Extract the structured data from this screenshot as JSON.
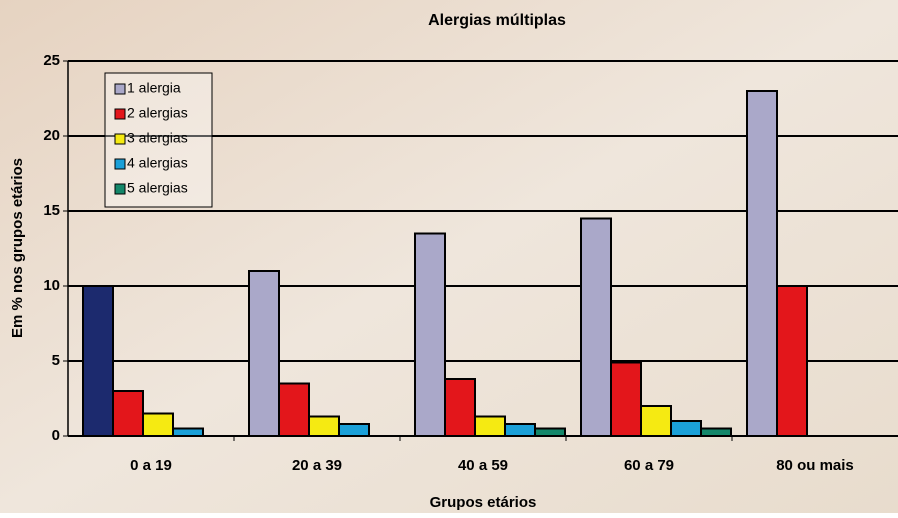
{
  "chart_data": {
    "type": "bar",
    "title": "Alergias múltiplas",
    "x_label": "Grupos etários",
    "y_label": "Em % nos grupos etários",
    "categories": [
      "0 a 19",
      "20 a 39",
      "40 a 59",
      "60 a 79",
      "80 ou mais"
    ],
    "series": [
      {
        "name": "1 alergia",
        "color": "#aaa8c9",
        "colors": [
          "#1c2a6e",
          "#aaa8c9",
          "#aaa8c9",
          "#aaa8c9",
          "#aaa8c9"
        ],
        "values": [
          10,
          11,
          13.5,
          14.5,
          23
        ]
      },
      {
        "name": "2 alergias",
        "color": "#e3161b",
        "values": [
          3,
          3.5,
          3.8,
          4.9,
          10
        ]
      },
      {
        "name": "3 alergias",
        "color": "#f5ea12",
        "values": [
          1.5,
          1.3,
          1.3,
          2,
          null
        ]
      },
      {
        "name": "4 alergias",
        "color": "#1ba0d8",
        "values": [
          0.5,
          0.8,
          0.8,
          1,
          null
        ]
      },
      {
        "name": "5 alergias",
        "color": "#14876a",
        "values": [
          null,
          null,
          0.5,
          0.5,
          null
        ]
      }
    ],
    "ylim": [
      0,
      25
    ],
    "yticks": [
      0,
      5,
      10,
      15,
      20,
      25
    ],
    "grid": true,
    "legend": "upper left"
  }
}
